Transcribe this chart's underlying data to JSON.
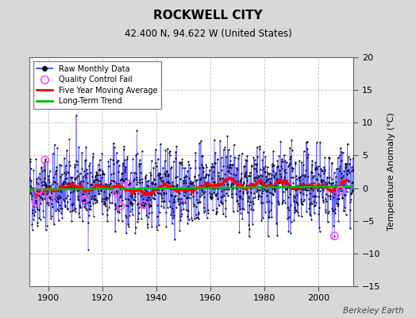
{
  "title": "ROCKWELL CITY",
  "subtitle": "42.400 N, 94.622 W (United States)",
  "ylabel": "Temperature Anomaly (°C)",
  "watermark": "Berkeley Earth",
  "xlim": [
    1893,
    2013
  ],
  "ylim": [
    -15,
    20
  ],
  "yticks": [
    -15,
    -10,
    -5,
    0,
    5,
    10,
    15,
    20
  ],
  "xticks": [
    1900,
    1920,
    1940,
    1960,
    1980,
    2000
  ],
  "start_year": 1893,
  "end_year": 2012,
  "bg_color": "#d8d8d8",
  "plot_bg_color": "#ffffff",
  "grid_color": "#bbbbbb",
  "raw_line_color": "#5555ff",
  "raw_dot_color": "#000000",
  "qc_color": "#ff55ff",
  "moving_avg_color": "#ff0000",
  "trend_color": "#00bb00",
  "seed": 42,
  "noise_std": 2.8,
  "trend_slope": 0.004,
  "qc_years": [
    1895,
    1896,
    1898,
    1900,
    1913,
    1925,
    1926,
    1929,
    1935,
    2005,
    2008
  ]
}
